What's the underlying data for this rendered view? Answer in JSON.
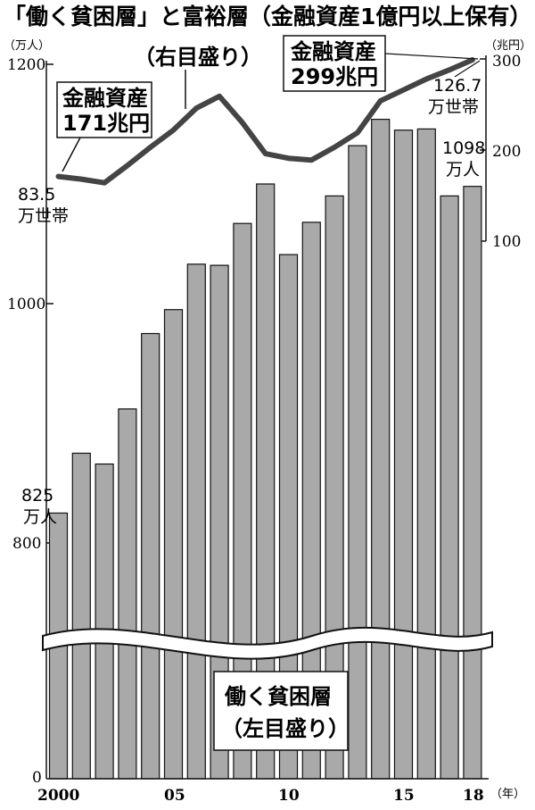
{
  "title": "「働く貧困層」と富裕層（金融資産1億円以上保有）",
  "chart_data": {
    "type": "bar+line",
    "left_axis": {
      "unit": "（万人）",
      "ticks": [
        "1200",
        "1000",
        "800",
        "0"
      ],
      "label": "働く貧困層",
      "label2": "（左目盛り）",
      "axis_break": true
    },
    "right_axis": {
      "unit": "（兆円）",
      "ticks": [
        "300",
        "200",
        "100"
      ],
      "label": "（右目盛り）"
    },
    "x_ticks": [
      "2000",
      "05",
      "10",
      "15",
      "18"
    ],
    "x_unit": "（年）",
    "years": [
      2000,
      2001,
      2002,
      2003,
      2004,
      2005,
      2006,
      2007,
      2008,
      2009,
      2010,
      2011,
      2012,
      2013,
      2014,
      2015,
      2016,
      2017,
      2018
    ],
    "bars": {
      "name": "働く貧困層",
      "unit": "万人",
      "values": [
        825,
        875,
        866,
        912,
        975,
        995,
        1033,
        1032,
        1067,
        1100,
        1041,
        1068,
        1090,
        1132,
        1154,
        1145,
        1146,
        1090,
        1098
      ]
    },
    "line": {
      "name": "金融資産",
      "unit": "兆円",
      "values": [
        171,
        168,
        164,
        183,
        203,
        222,
        246,
        259,
        230,
        196,
        191,
        189,
        203,
        219,
        254,
        266,
        278,
        288,
        299
      ]
    },
    "annotations": {
      "start_assets_l1": "金融資産",
      "start_assets_l2": "171兆円",
      "end_assets_l1": "金融資産",
      "end_assets_l2": "299兆円",
      "start_households_val": "83.5",
      "start_households_unit": "万世帯",
      "end_households_val": "126.7",
      "end_households_unit": "万世帯",
      "start_poor_val": "825",
      "start_poor_unit": "万人",
      "end_poor_val": "1098",
      "end_poor_unit": "万人"
    }
  }
}
